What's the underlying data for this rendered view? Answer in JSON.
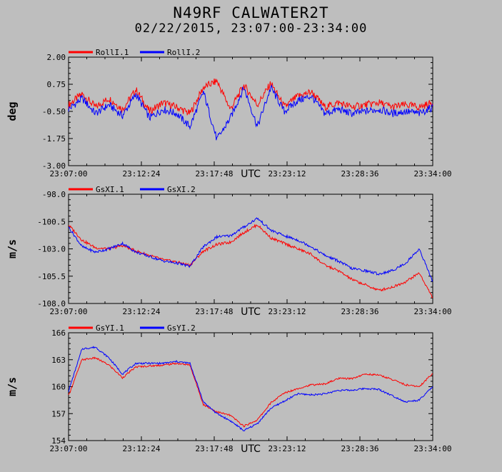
{
  "header": {
    "title": "N49RF CALWATER2T",
    "subtitle": "02/22/2015, 23:07:00-23:34:00"
  },
  "colors": {
    "background": "#bebebe",
    "series1": "#ff0000",
    "series2": "#0000ff"
  },
  "chart_data": [
    {
      "type": "line",
      "ylabel": "deg",
      "xlabel": "UTC",
      "ylim": [
        -3.0,
        2.0
      ],
      "yticks": [
        "2.00",
        "0.75",
        "-0.50",
        "-1.75",
        "-3.00"
      ],
      "xticks": [
        "23:07:00",
        "23:12:24",
        "23:17:48",
        "23:23:12",
        "23:28:36",
        "23:34:00"
      ],
      "legend_placement": "top-left",
      "x_minutes": [
        0,
        1,
        2,
        3,
        4,
        5,
        6,
        7,
        8,
        9,
        10,
        11,
        12,
        13,
        14,
        15,
        16,
        17,
        18,
        19,
        20,
        21,
        22,
        23,
        24,
        25,
        26,
        27
      ],
      "series": [
        {
          "name": "RollI.1",
          "color": "#ff0000",
          "values": [
            -0.2,
            0.3,
            -0.3,
            0.1,
            -0.4,
            0.5,
            -0.5,
            -0.1,
            -0.3,
            -0.6,
            0.6,
            0.9,
            -0.4,
            0.7,
            -0.2,
            0.8,
            -0.3,
            0.2,
            0.4,
            -0.3,
            -0.1,
            -0.3,
            -0.2,
            -0.1,
            -0.3,
            -0.2,
            -0.3,
            -0.1
          ]
        },
        {
          "name": "RollI.2",
          "color": "#0000ff",
          "values": [
            -0.4,
            0.1,
            -0.6,
            -0.2,
            -0.7,
            0.3,
            -0.8,
            -0.4,
            -0.6,
            -1.2,
            0.4,
            -1.8,
            -0.8,
            0.6,
            -1.2,
            0.6,
            -0.5,
            0.0,
            0.2,
            -0.6,
            -0.4,
            -0.6,
            -0.5,
            -0.4,
            -0.6,
            -0.5,
            -0.6,
            -0.3
          ]
        }
      ]
    },
    {
      "type": "line",
      "ylabel": "m/s",
      "xlabel": "UTC",
      "ylim": [
        -108.0,
        -98.0
      ],
      "yticks": [
        "-98.0",
        "-100.5",
        "-103.0",
        "-105.5",
        "-108.0"
      ],
      "xticks": [
        "23:07:00",
        "23:12:24",
        "23:17:48",
        "23:23:12",
        "23:28:36",
        "23:34:00"
      ],
      "legend_placement": "top-left",
      "x_minutes": [
        0,
        1,
        2,
        3,
        4,
        5,
        6,
        7,
        8,
        9,
        10,
        11,
        12,
        13,
        14,
        15,
        16,
        17,
        18,
        19,
        20,
        21,
        22,
        23,
        24,
        25,
        26,
        27
      ],
      "series": [
        {
          "name": "GsXI.1",
          "color": "#ff0000",
          "values": [
            -100.8,
            -102.2,
            -102.9,
            -103.0,
            -102.7,
            -103.2,
            -103.6,
            -104.0,
            -104.2,
            -104.5,
            -103.2,
            -102.6,
            -102.4,
            -101.5,
            -100.8,
            -102.0,
            -102.5,
            -103.0,
            -103.5,
            -104.5,
            -105.0,
            -105.8,
            -106.3,
            -106.8,
            -106.5,
            -106.0,
            -105.2,
            -107.5
          ]
        },
        {
          "name": "GsXI.2",
          "color": "#0000ff",
          "values": [
            -101.0,
            -102.8,
            -103.3,
            -103.0,
            -102.5,
            -103.3,
            -103.7,
            -104.1,
            -104.3,
            -104.6,
            -102.8,
            -101.9,
            -101.8,
            -101.0,
            -100.2,
            -101.3,
            -101.8,
            -102.2,
            -102.8,
            -103.6,
            -104.1,
            -104.8,
            -105.0,
            -105.3,
            -105.0,
            -104.3,
            -103.0,
            -106.0
          ]
        }
      ]
    },
    {
      "type": "line",
      "ylabel": "m/s",
      "xlabel": "UTC",
      "ylim": [
        154,
        166
      ],
      "yticks": [
        "166",
        "163",
        "160",
        "157",
        "154"
      ],
      "xticks": [
        "23:07:00",
        "23:12:24",
        "23:17:48",
        "23:23:12",
        "23:28:36",
        "23:34:00"
      ],
      "legend_placement": "top-left",
      "x_minutes": [
        0,
        1,
        2,
        3,
        4,
        5,
        6,
        7,
        8,
        9,
        10,
        11,
        12,
        13,
        14,
        15,
        16,
        17,
        18,
        19,
        20,
        21,
        22,
        23,
        24,
        25,
        26,
        27
      ],
      "series": [
        {
          "name": "GsYI.1",
          "color": "#ff0000",
          "values": [
            159.0,
            163.0,
            163.2,
            162.4,
            161.0,
            162.2,
            162.3,
            162.4,
            162.6,
            162.4,
            158.0,
            157.2,
            156.8,
            155.6,
            156.3,
            158.2,
            159.3,
            159.8,
            160.2,
            160.3,
            160.9,
            160.9,
            161.4,
            161.3,
            160.8,
            160.2,
            160.0,
            161.5
          ]
        },
        {
          "name": "GsYI.2",
          "color": "#0000ff",
          "values": [
            159.5,
            164.2,
            164.4,
            163.2,
            161.4,
            162.6,
            162.6,
            162.6,
            162.8,
            162.6,
            158.3,
            157.0,
            156.2,
            155.1,
            155.9,
            157.6,
            158.4,
            159.2,
            159.1,
            159.2,
            159.6,
            159.6,
            159.8,
            159.7,
            159.0,
            158.3,
            158.5,
            160.0
          ]
        }
      ]
    }
  ]
}
